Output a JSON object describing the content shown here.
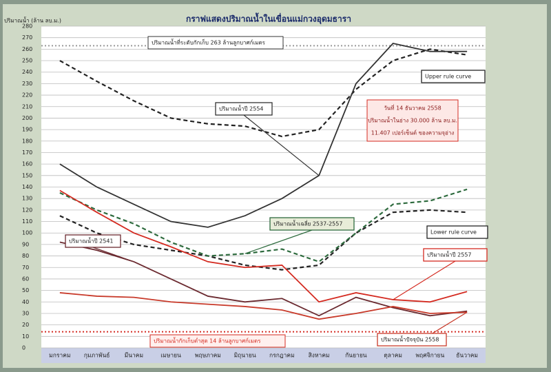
{
  "chart_data": {
    "type": "line",
    "title": "กราฟแสดงปริมาณน้ำในเขื่อนแม่กวงอุดมธารา",
    "y_label": "ปริมาณน้ำ (ล้าน ลบ.ม.)",
    "categories": [
      "มกราคม",
      "กุมภาพันธ์",
      "มีนาคม",
      "เมษายน",
      "พฤษภาคม",
      "มิถุนายน",
      "กรกฎาคม",
      "สิงหาคม",
      "กันยายน",
      "ตุลาคม",
      "พฤศจิกายน",
      "ธันวาคม"
    ],
    "ylim": [
      0,
      280
    ],
    "yticks": [
      0,
      10,
      20,
      30,
      40,
      50,
      60,
      70,
      80,
      90,
      100,
      110,
      120,
      130,
      140,
      150,
      160,
      170,
      180,
      190,
      200,
      210,
      220,
      230,
      240,
      250,
      260,
      270,
      280
    ],
    "grid": true,
    "series": [
      {
        "name": "Upper rule curve",
        "color": "#222222",
        "dashed": true,
        "values": [
          250,
          232,
          215,
          200,
          195,
          193,
          184,
          190,
          225,
          250,
          260,
          255
        ]
      },
      {
        "name": "ปริมาณน้ำปี 2554",
        "color": "#333333",
        "dashed": false,
        "values": [
          160,
          140,
          125,
          110,
          105,
          115,
          130,
          150,
          230,
          265,
          258,
          258
        ]
      },
      {
        "name": "Lower rule curve",
        "color": "#222222",
        "dashed": true,
        "values": [
          115,
          100,
          90,
          85,
          80,
          72,
          68,
          72,
          100,
          118,
          120,
          118
        ]
      },
      {
        "name": "ปริมาณน้ำเฉลี่ย 2537-2557",
        "color": "#2e6b3e",
        "dashed": true,
        "values": [
          135,
          120,
          108,
          92,
          80,
          82,
          86,
          75,
          100,
          125,
          128,
          138
        ]
      },
      {
        "name": "ปริมาณน้ำปี 2557",
        "color": "#d42a20",
        "dashed": false,
        "values": [
          137,
          118,
          100,
          88,
          75,
          70,
          72,
          40,
          48,
          42,
          40,
          49
        ]
      },
      {
        "name": "ปริมาณน้ำปี 2541",
        "color": "#6b2a30",
        "dashed": false,
        "values": [
          92,
          85,
          75,
          60,
          45,
          40,
          43,
          28,
          44,
          35,
          28,
          32
        ]
      },
      {
        "name": "ปริมาณน้ำปัจจุบัน 2558",
        "color": "#c83a2a",
        "dashed": false,
        "values": [
          48,
          45,
          44,
          40,
          38,
          36,
          33,
          25,
          30,
          36,
          30,
          31
        ]
      }
    ],
    "reference_lines": [
      {
        "value": 263,
        "label": "ปริมาณน้ำที่ระดับกักเก็บ 263 ล้านลูกบาศก์เมตร",
        "color": "#999999"
      },
      {
        "value": 14,
        "label": "ปริมาณน้ำกักเก็บต่ำสุด 14 ล้านลูกบาศก์เมตร",
        "color": "#d42a20"
      }
    ],
    "info_box": [
      "วันที่ 14 ธันวาคม 2558",
      "ปริมาณน้ำในอ่าง 30.000 ล้าน ลบ.ม.",
      "11.407 เปอร์เซ็นต์ ของความจุอ่าง"
    ]
  }
}
